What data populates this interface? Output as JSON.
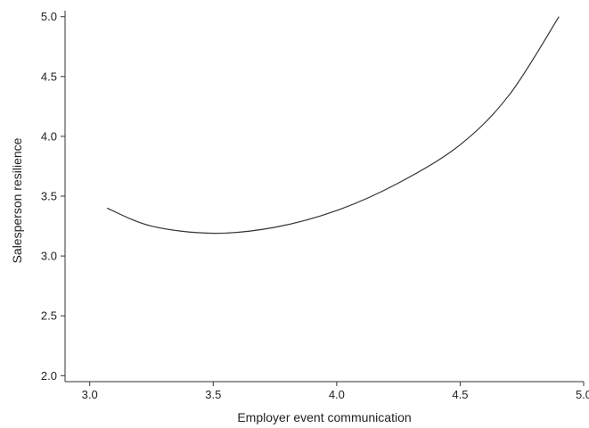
{
  "chart_data": {
    "type": "line",
    "title": "",
    "xlabel": "Employer event communication",
    "ylabel": "Salesperson resilience",
    "xlim": [
      2.9,
      5.0
    ],
    "ylim": [
      1.95,
      5.05
    ],
    "xticks": [
      3.0,
      3.5,
      4.0,
      4.5,
      5.0
    ],
    "xtick_labels": [
      "3.0",
      "3.5",
      "4.0",
      "4.5",
      "5.0"
    ],
    "yticks": [
      2.0,
      2.5,
      3.0,
      3.5,
      4.0,
      4.5,
      5.0
    ],
    "ytick_labels": [
      "2.0",
      "2.5",
      "3.0",
      "3.5",
      "4.0",
      "4.5",
      "5.0"
    ],
    "grid": false,
    "legend": "none",
    "line_color": "#333333",
    "series": [
      {
        "x": [
          3.07,
          3.25,
          3.5,
          3.75,
          4.0,
          4.25,
          4.5,
          4.7,
          4.9
        ],
        "y": [
          3.4,
          3.25,
          3.19,
          3.24,
          3.38,
          3.61,
          3.93,
          4.35,
          5.0
        ]
      }
    ]
  }
}
